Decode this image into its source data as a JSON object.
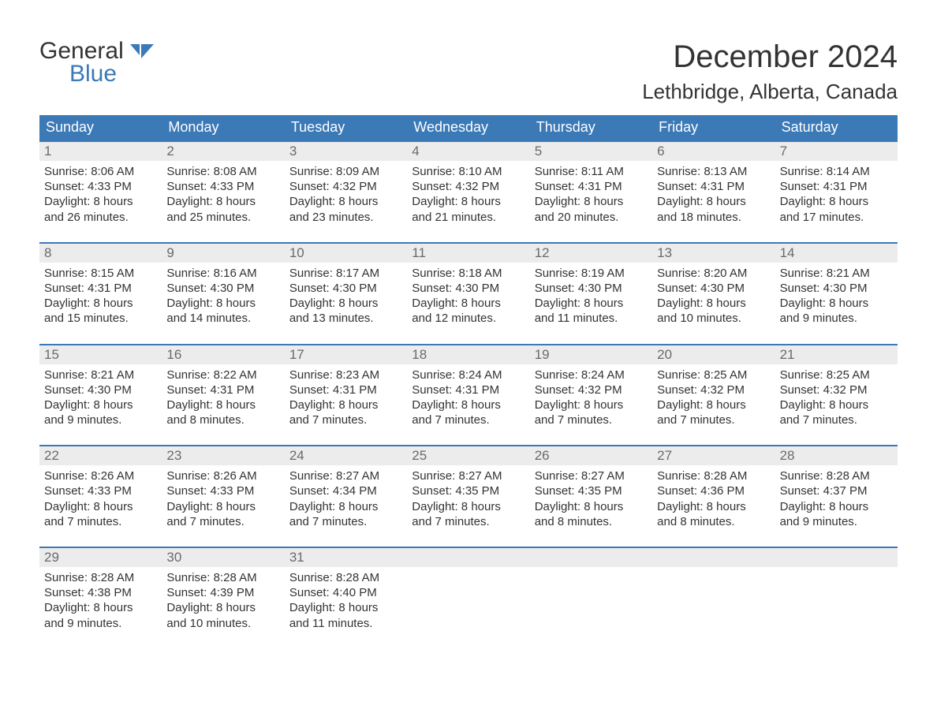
{
  "brand": {
    "general": "General",
    "blue": "Blue"
  },
  "title": "December 2024",
  "location": "Lethbridge, Alberta, Canada",
  "colors": {
    "header_bg": "#3b79b7",
    "header_text": "#ffffff",
    "daynum_bg": "#ececec",
    "daynum_text": "#6a6a6a",
    "body_text": "#333333",
    "rule": "#3b79b7",
    "page_bg": "#ffffff"
  },
  "typography": {
    "title_fontsize": 40,
    "location_fontsize": 26,
    "weekday_fontsize": 18,
    "daynum_fontsize": 17,
    "cell_fontsize": 15
  },
  "weekdays": [
    "Sunday",
    "Monday",
    "Tuesday",
    "Wednesday",
    "Thursday",
    "Friday",
    "Saturday"
  ],
  "weeks": [
    [
      {
        "n": "1",
        "sr": "Sunrise: 8:06 AM",
        "ss": "Sunset: 4:33 PM",
        "d1": "Daylight: 8 hours",
        "d2": "and 26 minutes."
      },
      {
        "n": "2",
        "sr": "Sunrise: 8:08 AM",
        "ss": "Sunset: 4:33 PM",
        "d1": "Daylight: 8 hours",
        "d2": "and 25 minutes."
      },
      {
        "n": "3",
        "sr": "Sunrise: 8:09 AM",
        "ss": "Sunset: 4:32 PM",
        "d1": "Daylight: 8 hours",
        "d2": "and 23 minutes."
      },
      {
        "n": "4",
        "sr": "Sunrise: 8:10 AM",
        "ss": "Sunset: 4:32 PM",
        "d1": "Daylight: 8 hours",
        "d2": "and 21 minutes."
      },
      {
        "n": "5",
        "sr": "Sunrise: 8:11 AM",
        "ss": "Sunset: 4:31 PM",
        "d1": "Daylight: 8 hours",
        "d2": "and 20 minutes."
      },
      {
        "n": "6",
        "sr": "Sunrise: 8:13 AM",
        "ss": "Sunset: 4:31 PM",
        "d1": "Daylight: 8 hours",
        "d2": "and 18 minutes."
      },
      {
        "n": "7",
        "sr": "Sunrise: 8:14 AM",
        "ss": "Sunset: 4:31 PM",
        "d1": "Daylight: 8 hours",
        "d2": "and 17 minutes."
      }
    ],
    [
      {
        "n": "8",
        "sr": "Sunrise: 8:15 AM",
        "ss": "Sunset: 4:31 PM",
        "d1": "Daylight: 8 hours",
        "d2": "and 15 minutes."
      },
      {
        "n": "9",
        "sr": "Sunrise: 8:16 AM",
        "ss": "Sunset: 4:30 PM",
        "d1": "Daylight: 8 hours",
        "d2": "and 14 minutes."
      },
      {
        "n": "10",
        "sr": "Sunrise: 8:17 AM",
        "ss": "Sunset: 4:30 PM",
        "d1": "Daylight: 8 hours",
        "d2": "and 13 minutes."
      },
      {
        "n": "11",
        "sr": "Sunrise: 8:18 AM",
        "ss": "Sunset: 4:30 PM",
        "d1": "Daylight: 8 hours",
        "d2": "and 12 minutes."
      },
      {
        "n": "12",
        "sr": "Sunrise: 8:19 AM",
        "ss": "Sunset: 4:30 PM",
        "d1": "Daylight: 8 hours",
        "d2": "and 11 minutes."
      },
      {
        "n": "13",
        "sr": "Sunrise: 8:20 AM",
        "ss": "Sunset: 4:30 PM",
        "d1": "Daylight: 8 hours",
        "d2": "and 10 minutes."
      },
      {
        "n": "14",
        "sr": "Sunrise: 8:21 AM",
        "ss": "Sunset: 4:30 PM",
        "d1": "Daylight: 8 hours",
        "d2": "and 9 minutes."
      }
    ],
    [
      {
        "n": "15",
        "sr": "Sunrise: 8:21 AM",
        "ss": "Sunset: 4:30 PM",
        "d1": "Daylight: 8 hours",
        "d2": "and 9 minutes."
      },
      {
        "n": "16",
        "sr": "Sunrise: 8:22 AM",
        "ss": "Sunset: 4:31 PM",
        "d1": "Daylight: 8 hours",
        "d2": "and 8 minutes."
      },
      {
        "n": "17",
        "sr": "Sunrise: 8:23 AM",
        "ss": "Sunset: 4:31 PM",
        "d1": "Daylight: 8 hours",
        "d2": "and 7 minutes."
      },
      {
        "n": "18",
        "sr": "Sunrise: 8:24 AM",
        "ss": "Sunset: 4:31 PM",
        "d1": "Daylight: 8 hours",
        "d2": "and 7 minutes."
      },
      {
        "n": "19",
        "sr": "Sunrise: 8:24 AM",
        "ss": "Sunset: 4:32 PM",
        "d1": "Daylight: 8 hours",
        "d2": "and 7 minutes."
      },
      {
        "n": "20",
        "sr": "Sunrise: 8:25 AM",
        "ss": "Sunset: 4:32 PM",
        "d1": "Daylight: 8 hours",
        "d2": "and 7 minutes."
      },
      {
        "n": "21",
        "sr": "Sunrise: 8:25 AM",
        "ss": "Sunset: 4:32 PM",
        "d1": "Daylight: 8 hours",
        "d2": "and 7 minutes."
      }
    ],
    [
      {
        "n": "22",
        "sr": "Sunrise: 8:26 AM",
        "ss": "Sunset: 4:33 PM",
        "d1": "Daylight: 8 hours",
        "d2": "and 7 minutes."
      },
      {
        "n": "23",
        "sr": "Sunrise: 8:26 AM",
        "ss": "Sunset: 4:33 PM",
        "d1": "Daylight: 8 hours",
        "d2": "and 7 minutes."
      },
      {
        "n": "24",
        "sr": "Sunrise: 8:27 AM",
        "ss": "Sunset: 4:34 PM",
        "d1": "Daylight: 8 hours",
        "d2": "and 7 minutes."
      },
      {
        "n": "25",
        "sr": "Sunrise: 8:27 AM",
        "ss": "Sunset: 4:35 PM",
        "d1": "Daylight: 8 hours",
        "d2": "and 7 minutes."
      },
      {
        "n": "26",
        "sr": "Sunrise: 8:27 AM",
        "ss": "Sunset: 4:35 PM",
        "d1": "Daylight: 8 hours",
        "d2": "and 8 minutes."
      },
      {
        "n": "27",
        "sr": "Sunrise: 8:28 AM",
        "ss": "Sunset: 4:36 PM",
        "d1": "Daylight: 8 hours",
        "d2": "and 8 minutes."
      },
      {
        "n": "28",
        "sr": "Sunrise: 8:28 AM",
        "ss": "Sunset: 4:37 PM",
        "d1": "Daylight: 8 hours",
        "d2": "and 9 minutes."
      }
    ],
    [
      {
        "n": "29",
        "sr": "Sunrise: 8:28 AM",
        "ss": "Sunset: 4:38 PM",
        "d1": "Daylight: 8 hours",
        "d2": "and 9 minutes."
      },
      {
        "n": "30",
        "sr": "Sunrise: 8:28 AM",
        "ss": "Sunset: 4:39 PM",
        "d1": "Daylight: 8 hours",
        "d2": "and 10 minutes."
      },
      {
        "n": "31",
        "sr": "Sunrise: 8:28 AM",
        "ss": "Sunset: 4:40 PM",
        "d1": "Daylight: 8 hours",
        "d2": "and 11 minutes."
      },
      {
        "n": "",
        "sr": "",
        "ss": "",
        "d1": "",
        "d2": ""
      },
      {
        "n": "",
        "sr": "",
        "ss": "",
        "d1": "",
        "d2": ""
      },
      {
        "n": "",
        "sr": "",
        "ss": "",
        "d1": "",
        "d2": ""
      },
      {
        "n": "",
        "sr": "",
        "ss": "",
        "d1": "",
        "d2": ""
      }
    ]
  ]
}
